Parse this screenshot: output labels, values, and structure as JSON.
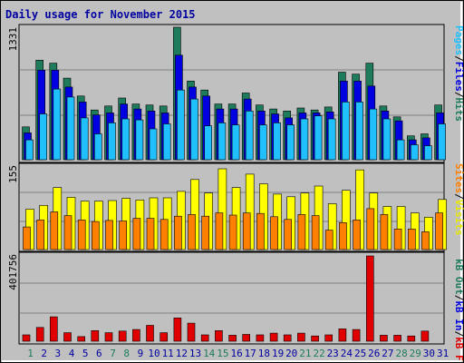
{
  "chart_data": [
    {
      "type": "bar",
      "title": "Daily usage for November 2015",
      "categories": [
        "1",
        "2",
        "3",
        "4",
        "5",
        "6",
        "7",
        "8",
        "9",
        "10",
        "11",
        "12",
        "13",
        "14",
        "15",
        "16",
        "17",
        "18",
        "19",
        "20",
        "21",
        "22",
        "23",
        "24",
        "25",
        "26",
        "27",
        "28",
        "29",
        "30",
        "31"
      ],
      "weekend_categories": [
        "1",
        "7",
        "8",
        "14",
        "15",
        "21",
        "22",
        "28",
        "29"
      ],
      "ylim": [
        0,
        1331
      ],
      "y_tick_label": "1331",
      "legend": [
        "Pages",
        "Files",
        "Hits"
      ],
      "series": [
        {
          "name": "Hits",
          "color": "#1e7c5c",
          "values": [
            330,
            1000,
            970,
            820,
            640,
            500,
            540,
            620,
            560,
            550,
            540,
            1331,
            790,
            700,
            560,
            560,
            670,
            550,
            510,
            490,
            520,
            500,
            530,
            880,
            860,
            970,
            540,
            430,
            240,
            260,
            550
          ]
        },
        {
          "name": "Files",
          "color": "#0000e0",
          "values": [
            270,
            900,
            900,
            730,
            580,
            450,
            470,
            560,
            510,
            490,
            470,
            1050,
            730,
            640,
            510,
            510,
            610,
            490,
            460,
            420,
            470,
            470,
            480,
            790,
            790,
            740,
            490,
            390,
            200,
            220,
            470
          ]
        },
        {
          "name": "Pages",
          "color": "#20c0ff",
          "values": [
            200,
            460,
            710,
            630,
            420,
            260,
            370,
            410,
            400,
            310,
            360,
            700,
            610,
            340,
            370,
            350,
            490,
            350,
            370,
            350,
            410,
            440,
            410,
            580,
            580,
            510,
            410,
            200,
            150,
            140,
            360
          ]
        }
      ]
    },
    {
      "type": "bar",
      "ylim": [
        0,
        155
      ],
      "y_tick_label": "155",
      "legend": [
        "Visits",
        "Sites"
      ],
      "series": [
        {
          "name": "Visits",
          "color": "#ffff00",
          "values": [
            75,
            82,
            115,
            97,
            90,
            90,
            91,
            95,
            92,
            96,
            96,
            108,
            130,
            105,
            150,
            115,
            140,
            122,
            103,
            98,
            105,
            118,
            85,
            110,
            148,
            105,
            80,
            80,
            68,
            60,
            93
          ]
        },
        {
          "name": "Sites",
          "color": "#ff8000",
          "values": [
            42,
            55,
            70,
            63,
            55,
            52,
            54,
            53,
            58,
            58,
            56,
            62,
            65,
            62,
            68,
            64,
            68,
            67,
            61,
            56,
            65,
            63,
            36,
            50,
            55,
            76,
            65,
            38,
            38,
            33,
            68
          ]
        }
      ]
    },
    {
      "type": "bar",
      "ylim": [
        0,
        401756
      ],
      "y_tick_label": "401756",
      "legend": [
        "kB F",
        "kB In",
        "kB Out"
      ],
      "series": [
        {
          "name": "kB F",
          "color": "#e00000",
          "values": [
            30000,
            65000,
            115000,
            40000,
            22000,
            50000,
            40000,
            48000,
            55000,
            75000,
            40000,
            110000,
            85000,
            30000,
            50000,
            28000,
            32000,
            30000,
            38000,
            30000,
            38000,
            25000,
            30000,
            58000,
            55000,
            401756,
            28000,
            28000,
            25000,
            48000,
            0
          ]
        }
      ]
    }
  ],
  "colors": {
    "background": "#c0c0c0",
    "outer_border": "#000000",
    "title": "#0000a0",
    "weekday_label": "#0000a0",
    "weekend_label": "#1e7c5c",
    "grid": "#808080"
  },
  "legend_labels": {
    "pages": "Pages",
    "files": "Files",
    "hits": "Hits",
    "visits": "Visits",
    "sites": "Sites",
    "kbf": "kB F",
    "kbin": "kB In",
    "kbout": "kB Out",
    "sep": "/"
  }
}
